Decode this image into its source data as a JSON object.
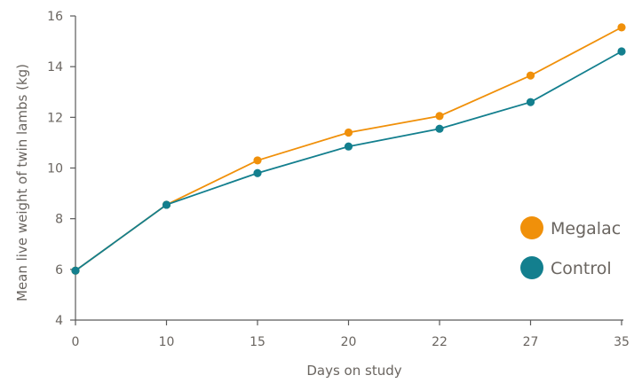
{
  "chart_data": {
    "type": "line",
    "title": "",
    "xlabel": "Days on study",
    "ylabel": "Mean live weight of twin lambs (kg)",
    "categories": [
      "0",
      "10",
      "15",
      "20",
      "22",
      "27",
      "35"
    ],
    "ylim": [
      4,
      16
    ],
    "yticks": [
      4,
      6,
      8,
      10,
      12,
      14,
      16
    ],
    "grid": false,
    "legend_position": "right",
    "series": [
      {
        "name": "Megalac",
        "color": "#F0900A",
        "values": [
          5.95,
          8.55,
          10.3,
          11.4,
          12.05,
          13.65,
          15.55
        ]
      },
      {
        "name": "Control",
        "color": "#137F8E",
        "values": [
          5.95,
          8.55,
          9.8,
          10.85,
          11.55,
          12.6,
          14.6
        ]
      }
    ]
  }
}
